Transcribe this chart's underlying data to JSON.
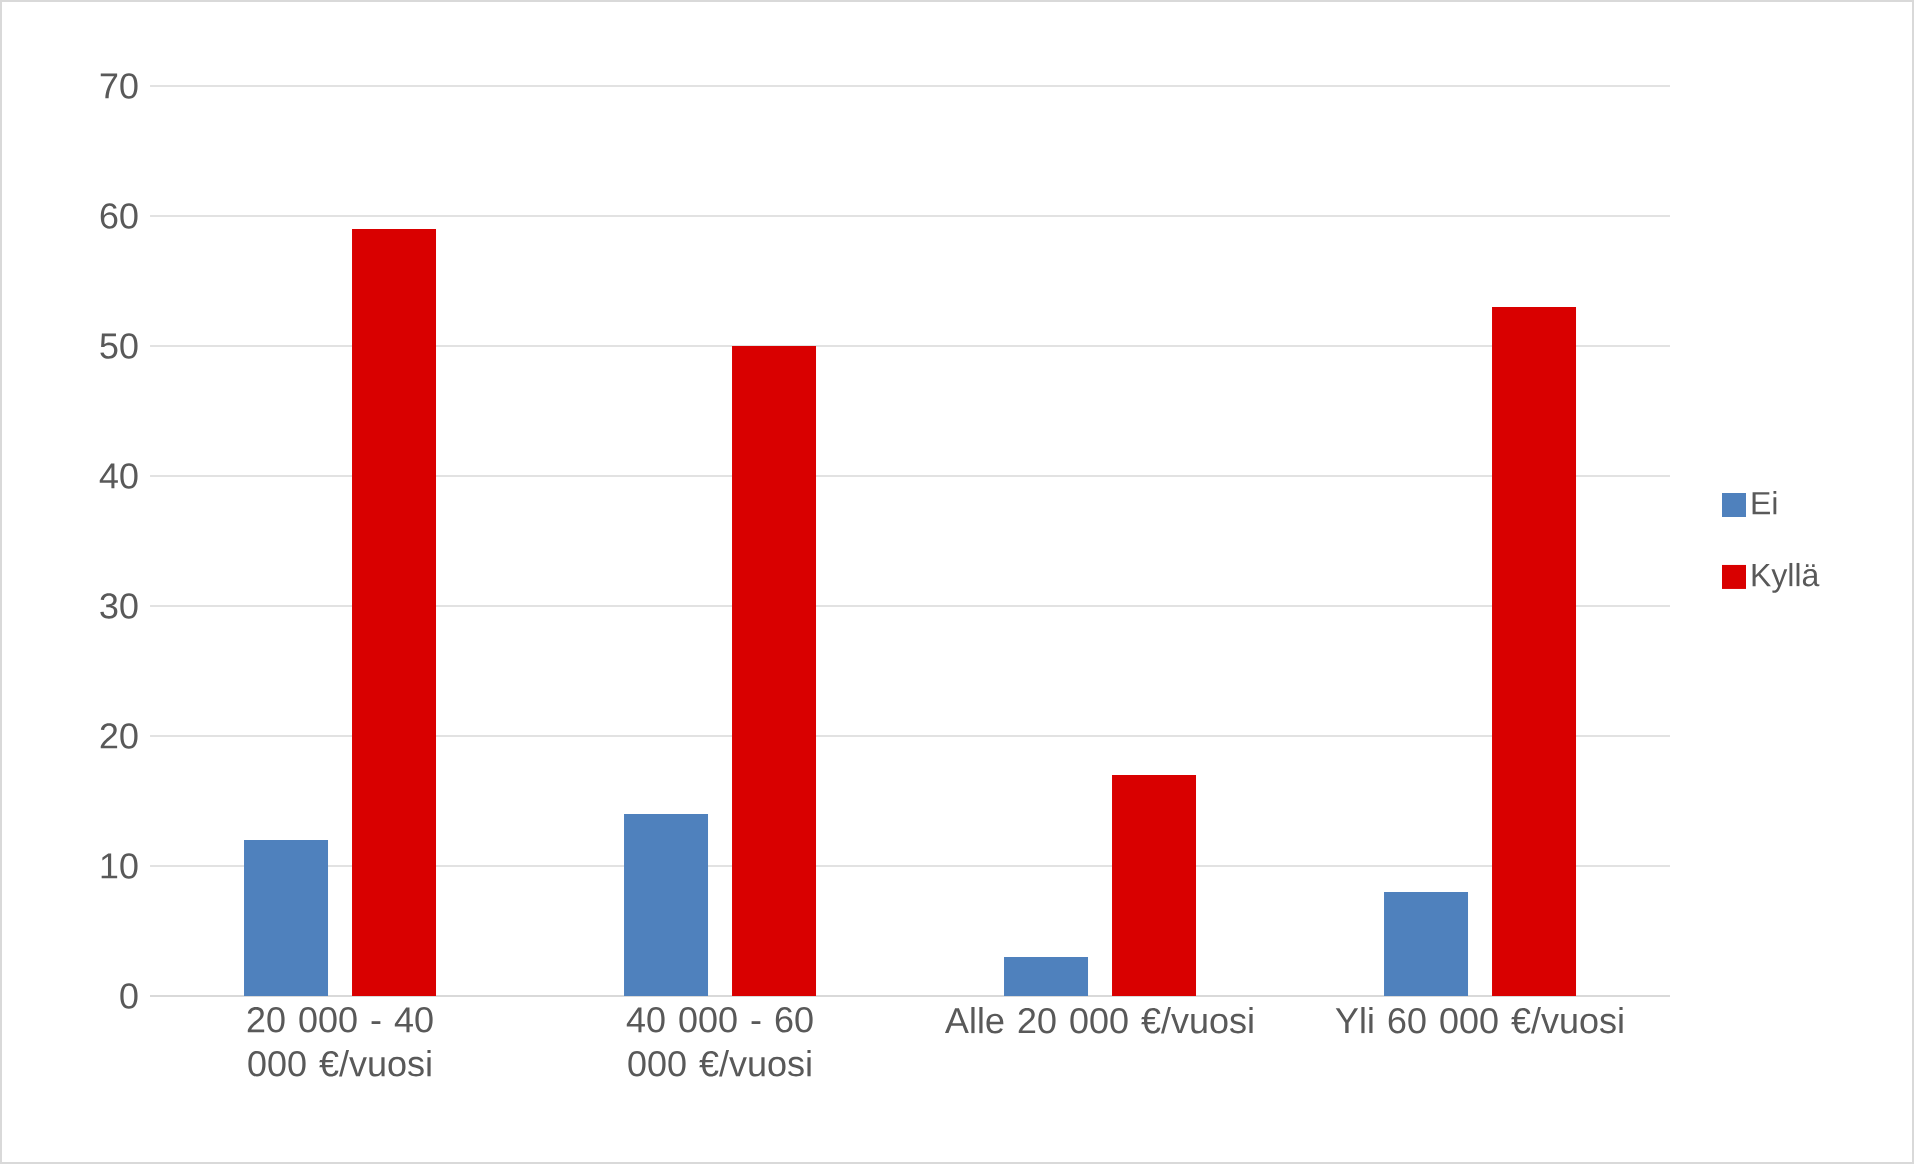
{
  "chart_data": {
    "type": "bar",
    "categories": [
      "20 000 - 40 000 €/vuosi",
      "40 000 - 60 000 €/vuosi",
      "Alle 20 000 €/vuosi",
      "Yli 60 000 €/vuosi"
    ],
    "series": [
      {
        "name": "Ei",
        "color": "#4f81bd",
        "values": [
          12,
          14,
          3,
          8
        ]
      },
      {
        "name": "Kyllä",
        "color": "#d90000",
        "values": [
          59,
          50,
          17,
          53
        ]
      }
    ],
    "ylim": [
      0,
      70
    ],
    "yticks": [
      0,
      10,
      20,
      30,
      40,
      50,
      60,
      70
    ],
    "grid": "y",
    "legend": "right"
  }
}
